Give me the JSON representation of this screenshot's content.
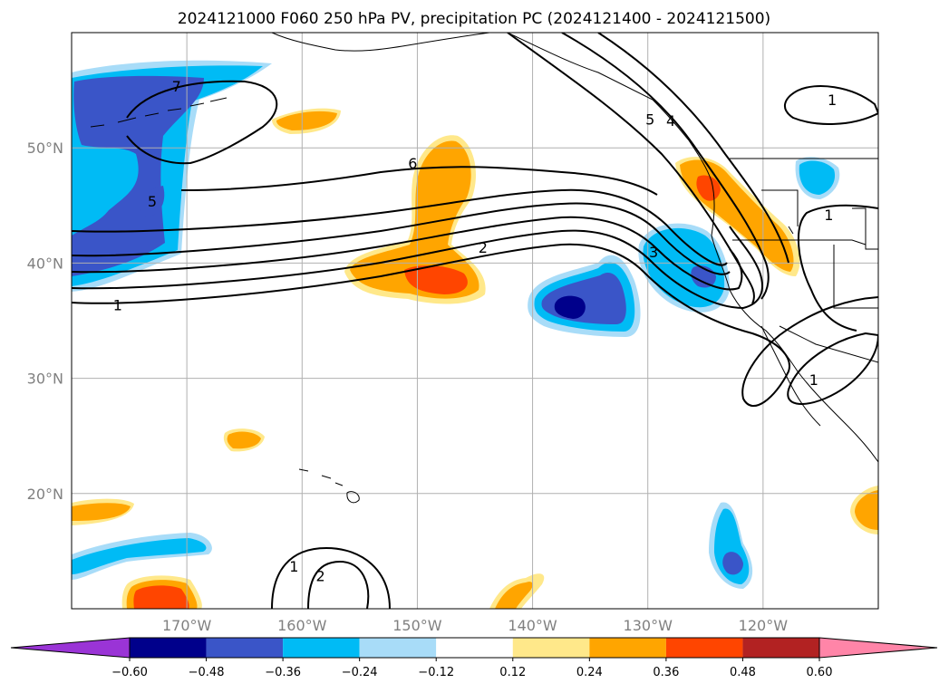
{
  "chart_data": {
    "type": "map",
    "title": "2024121000 F060 250 hPa PV, precipitation PC (2024121400 - 2024121500)",
    "lon_range": [
      -180,
      -110
    ],
    "lat_range": [
      10,
      60
    ],
    "lon_ticks": [
      {
        "value": -170,
        "label": "170°W"
      },
      {
        "value": -160,
        "label": "160°W"
      },
      {
        "value": -150,
        "label": "150°W"
      },
      {
        "value": -140,
        "label": "140°W"
      },
      {
        "value": -130,
        "label": "130°W"
      },
      {
        "value": -120,
        "label": "120°W"
      }
    ],
    "lat_ticks": [
      {
        "value": 50,
        "label": "50°N"
      },
      {
        "value": 40,
        "label": "40°N"
      },
      {
        "value": 30,
        "label": "30°N"
      },
      {
        "value": 20,
        "label": "20°N"
      }
    ],
    "grid": true,
    "colorbar": {
      "extend": "both",
      "levels": [
        -0.6,
        -0.48,
        -0.36,
        -0.24,
        -0.12,
        0.12,
        0.24,
        0.36,
        0.48,
        0.6
      ],
      "level_labels": [
        "−0.60",
        "−0.48",
        "−0.36",
        "−0.24",
        "−0.12",
        "0.12",
        "0.24",
        "0.36",
        "0.48",
        "0.60"
      ],
      "colors": [
        "#9a34d6",
        "#00008b",
        "#3a55c8",
        "#00bbf5",
        "#a8dcf8",
        "#ffffff",
        "#ffe88a",
        "#ffa500",
        "#ff4500",
        "#b22222",
        "#ff85a8"
      ]
    },
    "pv_contour_labels": [
      {
        "lon": -170.9,
        "lat": 55.3,
        "text": "7"
      },
      {
        "lon": -173.0,
        "lat": 45.3,
        "text": "5"
      },
      {
        "lon": -150.4,
        "lat": 48.6,
        "text": "6"
      },
      {
        "lon": -144.3,
        "lat": 41.3,
        "text": "2"
      },
      {
        "lon": -176.0,
        "lat": 36.3,
        "text": "1"
      },
      {
        "lon": -129.5,
        "lat": 40.9,
        "text": "3"
      },
      {
        "lon": -128.0,
        "lat": 52.3,
        "text": "4"
      },
      {
        "lon": -129.8,
        "lat": 52.4,
        "text": "5"
      },
      {
        "lon": -114.0,
        "lat": 54.1,
        "text": "1"
      },
      {
        "lon": -114.3,
        "lat": 44.1,
        "text": "1"
      },
      {
        "lon": -115.6,
        "lat": 29.8,
        "text": "1"
      },
      {
        "lon": -160.7,
        "lat": 13.6,
        "text": "1"
      },
      {
        "lon": -158.4,
        "lat": 12.8,
        "text": "2"
      }
    ]
  }
}
